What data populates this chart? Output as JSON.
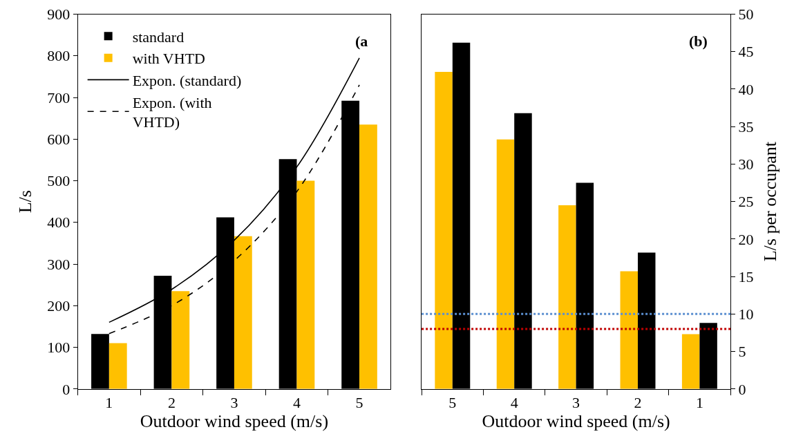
{
  "chart_data": [
    {
      "type": "bar",
      "xlabel": "Outdoor wind speed (m/s)",
      "ylabel": "L/s",
      "categories": [
        "1",
        "2",
        "3",
        "4",
        "5"
      ],
      "ylim": [
        0,
        900
      ],
      "yticks": [
        0,
        100,
        200,
        300,
        400,
        500,
        600,
        700,
        800,
        900
      ],
      "legend": "top left",
      "annotations": [
        "(a"
      ],
      "series": [
        {
          "name": "standard",
          "color": "#000000",
          "values": [
            132,
            272,
            412,
            552,
            692
          ]
        },
        {
          "name": "with VHTD",
          "color": "#ffc000",
          "values": [
            110,
            235,
            367,
            500,
            635
          ]
        },
        {
          "name": "Expon. (standard)",
          "type": "line",
          "line_style": "solid",
          "color": "#000000",
          "values": [
            160,
            239,
            357,
            533,
            795
          ]
        },
        {
          "name": "Expon. (with VHTD)",
          "type": "line",
          "line_style": "dashed",
          "color": "#000000",
          "values": [
            133,
            200,
            308,
            474,
            730
          ]
        }
      ]
    },
    {
      "type": "bar",
      "xlabel": "Outdoor wind speed (m/s)",
      "y2label": "L/s per occupant",
      "categories": [
        "5",
        "4",
        "3",
        "2",
        "1"
      ],
      "y2lim": [
        0,
        50
      ],
      "y2ticks": [
        0,
        5,
        10,
        15,
        20,
        25,
        30,
        35,
        40,
        45,
        50
      ],
      "legend": false,
      "annotations": [
        "(b)"
      ],
      "series": [
        {
          "color": "#ffc000",
          "axis": "y2",
          "values": [
            42.3,
            33.3,
            24.5,
            15.7,
            7.3
          ]
        },
        {
          "color": "#000000",
          "axis": "y2",
          "values": [
            46.2,
            36.8,
            27.5,
            18.2,
            8.8
          ]
        }
      ],
      "ref_lines": [
        {
          "axis": "y2",
          "value": 10,
          "color": "#5b8fd0",
          "line_style": "dotted"
        },
        {
          "axis": "y2",
          "value": 8,
          "color": "#c00000",
          "line_style": "dotted"
        }
      ]
    }
  ]
}
